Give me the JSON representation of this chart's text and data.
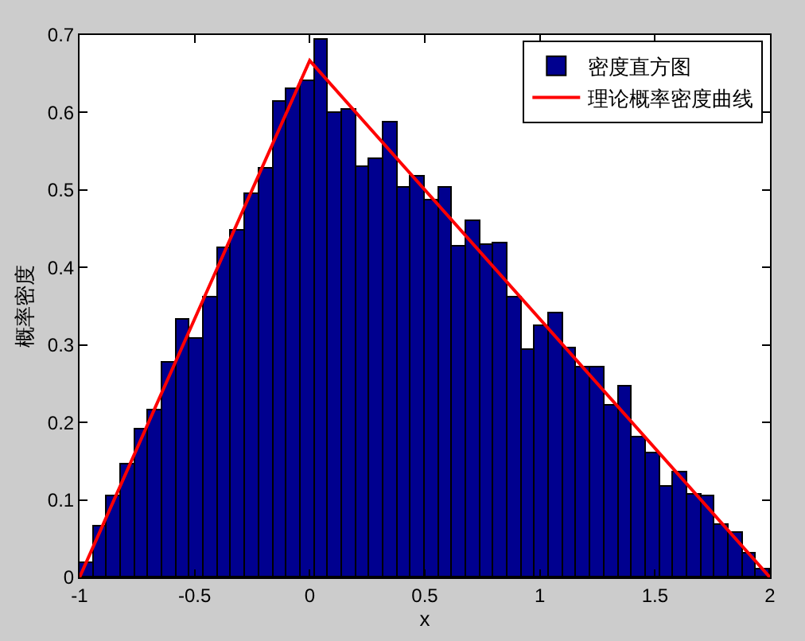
{
  "chart_data": {
    "type": "histogram",
    "xlabel": "x",
    "ylabel": "概率密度",
    "bins": [
      -1,
      -0.94,
      -0.88,
      -0.82,
      -0.76,
      -0.7,
      -0.64,
      -0.58,
      -0.52,
      -0.46,
      -0.4,
      -0.34,
      -0.28,
      -0.22,
      -0.16,
      -0.1,
      -0.04,
      0.02,
      0.08,
      0.14,
      0.2,
      0.26,
      0.32,
      0.38,
      0.44,
      0.5,
      0.56,
      0.62,
      0.68,
      0.74,
      0.8,
      0.86,
      0.92,
      0.98,
      1.04,
      1.1,
      1.16,
      1.22,
      1.28,
      1.34,
      1.4,
      1.46,
      1.52,
      1.58,
      1.64,
      1.7,
      1.76,
      1.82,
      1.88,
      1.94,
      2
    ],
    "series": [
      {
        "name": "密度直方图",
        "color": "#00008f",
        "values": [
          0.018,
          0.065,
          0.104,
          0.145,
          0.19,
          0.216,
          0.278,
          0.333,
          0.307,
          0.362,
          0.424,
          0.447,
          0.495,
          0.527,
          0.614,
          0.63,
          0.641,
          0.694,
          0.6,
          0.604,
          0.53,
          0.54,
          0.587,
          0.503,
          0.518,
          0.486,
          0.503,
          0.428,
          0.46,
          0.429,
          0.432,
          0.362,
          0.294,
          0.325,
          0.341,
          0.296,
          0.27,
          0.27,
          0.221,
          0.247,
          0.18,
          0.161,
          0.117,
          0.135,
          0.106,
          0.104,
          0.068,
          0.057,
          0.031,
          0.01
        ]
      },
      {
        "type": "line",
        "name": "理论概率密度曲线",
        "color": "#ff0000",
        "x": [
          -1,
          0,
          2
        ],
        "values": [
          0,
          0.667,
          0
        ]
      }
    ],
    "xlim": [
      -1,
      2
    ],
    "xticks": [
      -1,
      -0.5,
      0,
      0.5,
      1,
      1.5,
      2
    ],
    "ylim": [
      0,
      0.7
    ],
    "yticks": [
      0,
      0.1,
      0.2,
      0.3,
      0.4,
      0.5,
      0.6,
      0.7
    ],
    "legend": "top right"
  }
}
